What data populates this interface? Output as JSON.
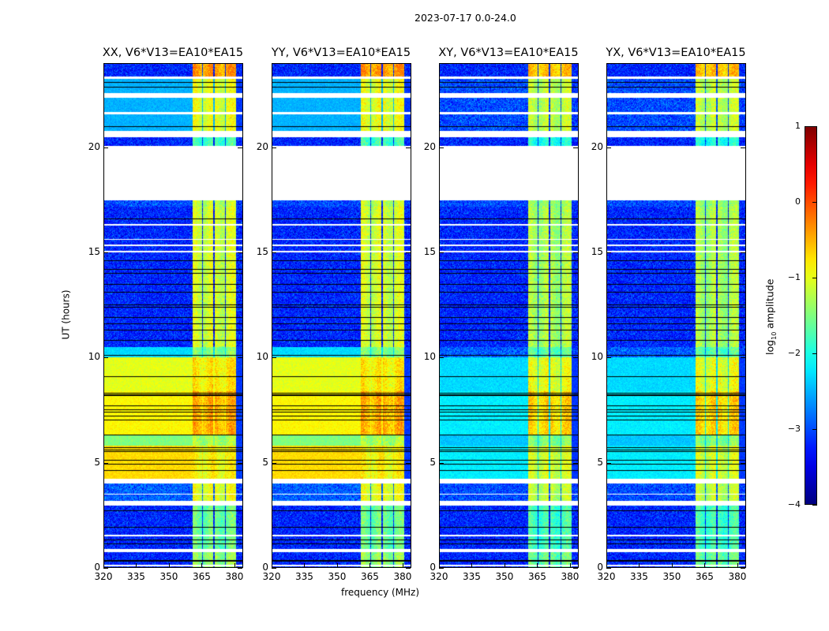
{
  "chart_data": {
    "type": "heatmap",
    "title": "2023-07-17 0.0-24.0",
    "xlabel": "frequency (MHz)",
    "ylabel": "UT (hours)",
    "colorbar": {
      "label": "log",
      "label_sub": "10",
      "label_rest": " amplitude",
      "range": [
        -4,
        1
      ],
      "ticks": [
        "−4",
        "−3",
        "−2",
        "−1",
        "0",
        "1"
      ],
      "tick_values": [
        -4,
        -3,
        -2,
        -1,
        0,
        1
      ],
      "colormap": "jet"
    },
    "xlim": [
      320,
      384
    ],
    "ylim": [
      0,
      24
    ],
    "xticks": [
      320,
      335,
      350,
      365,
      380
    ],
    "yticks": [
      0,
      5,
      10,
      15,
      20
    ],
    "panels": [
      {
        "title": "XX, V6*V13=EA10*EA15",
        "pol": "parallel"
      },
      {
        "title": "YY, V6*V13=EA10*EA15",
        "pol": "parallel"
      },
      {
        "title": "XY, V6*V13=EA10*EA15",
        "pol": "cross"
      },
      {
        "title": "YX, V6*V13=EA10*EA15",
        "pol": "cross"
      }
    ],
    "band_channels_mhz": [
      [
        361,
        365.3
      ],
      [
        365.8,
        370.6
      ],
      [
        371.1,
        375.9
      ],
      [
        376.4,
        381
      ]
    ],
    "time_segments": [
      {
        "h": [
          0,
          0.7
        ],
        "parallel_bg": -3.2,
        "cross_bg": -3.2,
        "band": -1.4
      },
      {
        "h": [
          0.85,
          2.95
        ],
        "parallel_bg": -3.2,
        "cross_bg": -3.2,
        "band": -1.6
      },
      {
        "h": [
          3.15,
          4.0
        ],
        "parallel_bg": -2.9,
        "cross_bg": -3.0,
        "band": -1.0
      },
      {
        "h": [
          4.2,
          5.8
        ],
        "parallel_bg": -0.7,
        "cross_bg": -2.2,
        "band": -0.9
      },
      {
        "h": [
          5.8,
          6.3
        ],
        "parallel_bg": -1.5,
        "cross_bg": -2.4,
        "band": -1.3
      },
      {
        "h": [
          6.3,
          8.4
        ],
        "parallel_bg": -0.85,
        "cross_bg": -2.2,
        "band": -0.5
      },
      {
        "h": [
          8.4,
          10.0
        ],
        "parallel_bg": -1.0,
        "cross_bg": -2.3,
        "band": -0.8
      },
      {
        "h": [
          10.0,
          10.5
        ],
        "parallel_bg": -2.3,
        "cross_bg": -2.9,
        "band": -1.5
      },
      {
        "h": [
          10.5,
          17.2
        ],
        "parallel_bg": -3.2,
        "cross_bg": -3.2,
        "band": -1.1
      },
      {
        "h": [
          17.2,
          17.5
        ],
        "parallel_bg": -3.0,
        "cross_bg": -3.0,
        "band": -1.2
      },
      {
        "h": [
          20.1,
          20.5
        ],
        "parallel_bg": -3.2,
        "cross_bg": -3.2,
        "band": -1.8
      },
      {
        "h": [
          20.8,
          23.3
        ],
        "parallel_bg": -2.5,
        "cross_bg": -3.0,
        "band": -1.0
      },
      {
        "h": [
          23.3,
          24
        ],
        "parallel_bg": -3.2,
        "cross_bg": -3.2,
        "band": -0.4
      }
    ],
    "flagged_hours": [
      [
        0.05,
        0.1
      ],
      [
        0.7,
        0.85
      ],
      [
        1.45,
        1.55
      ],
      [
        2.95,
        3.15
      ],
      [
        3.45,
        3.5
      ],
      [
        4.0,
        4.2
      ],
      [
        15.0,
        15.1
      ],
      [
        15.3,
        15.4
      ],
      [
        15.6,
        15.65
      ],
      [
        16.3,
        16.35
      ],
      [
        17.5,
        20.1
      ],
      [
        20.5,
        20.8
      ],
      [
        21.6,
        21.7
      ],
      [
        22.4,
        22.6
      ],
      [
        23.3,
        23.4
      ]
    ],
    "blank_lines_hours": [
      0.3,
      1.1,
      1.3,
      1.9,
      2.7,
      4.6,
      4.9,
      5.1,
      5.5,
      5.6,
      5.7,
      6.3,
      7.0,
      7.2,
      7.4,
      7.5,
      7.7,
      8.2,
      8.3,
      9.1,
      10.1,
      10.8,
      11.3,
      11.6,
      11.9,
      12.4,
      12.5,
      13.1,
      13.5,
      14.0,
      14.2,
      14.6,
      16.6,
      21.0,
      22.9,
      23.1
    ]
  }
}
